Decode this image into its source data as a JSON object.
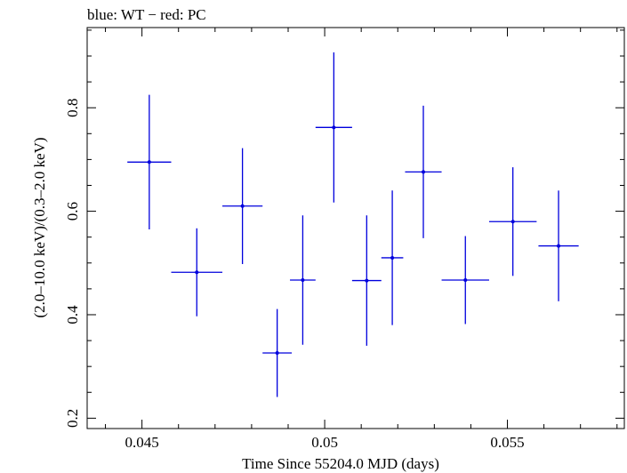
{
  "chart_data": {
    "type": "scatter",
    "title": "blue: WT − red: PC",
    "xlabel": "Time Since 55204.0 MJD (days)",
    "ylabel": "(2.0–10.0 keV)/(0.3–2.0 keV)",
    "xlim": [
      0.0435,
      0.0582
    ],
    "ylim": [
      0.18,
      0.955
    ],
    "xticks": [
      0.045,
      0.05,
      0.055
    ],
    "xtick_labels": [
      "0.045",
      "0.05",
      "0.055"
    ],
    "yticks": [
      0.2,
      0.4,
      0.6,
      0.8
    ],
    "ytick_labels": [
      "0.2",
      "0.4",
      "0.6",
      "0.8"
    ],
    "color": "#0000dd",
    "series": [
      {
        "points": [
          {
            "x": 0.0452,
            "y": 0.695,
            "xerr": 0.0006,
            "yerr_lo": 0.13,
            "yerr_hi": 0.13
          },
          {
            "x": 0.0465,
            "y": 0.482,
            "xerr": 0.0007,
            "yerr_lo": 0.085,
            "yerr_hi": 0.085
          },
          {
            "x": 0.04775,
            "y": 0.61,
            "xerr": 0.00055,
            "yerr_lo": 0.112,
            "yerr_hi": 0.112
          },
          {
            "x": 0.0487,
            "y": 0.326,
            "xerr": 0.0004,
            "yerr_lo": 0.085,
            "yerr_hi": 0.085
          },
          {
            "x": 0.0494,
            "y": 0.467,
            "xerr": 0.00035,
            "yerr_lo": 0.125,
            "yerr_hi": 0.125
          },
          {
            "x": 0.05025,
            "y": 0.762,
            "xerr": 0.0005,
            "yerr_lo": 0.145,
            "yerr_hi": 0.145
          },
          {
            "x": 0.05115,
            "y": 0.466,
            "xerr": 0.0004,
            "yerr_lo": 0.126,
            "yerr_hi": 0.126
          },
          {
            "x": 0.05185,
            "y": 0.51,
            "xerr": 0.0003,
            "yerr_lo": 0.13,
            "yerr_hi": 0.13
          },
          {
            "x": 0.0527,
            "y": 0.676,
            "xerr": 0.0005,
            "yerr_lo": 0.128,
            "yerr_hi": 0.128
          },
          {
            "x": 0.05385,
            "y": 0.467,
            "xerr": 0.00065,
            "yerr_lo": 0.085,
            "yerr_hi": 0.085
          },
          {
            "x": 0.05515,
            "y": 0.58,
            "xerr": 0.00065,
            "yerr_lo": 0.105,
            "yerr_hi": 0.105
          },
          {
            "x": 0.0564,
            "y": 0.533,
            "xerr": 0.00055,
            "yerr_lo": 0.107,
            "yerr_hi": 0.107
          }
        ]
      }
    ]
  }
}
